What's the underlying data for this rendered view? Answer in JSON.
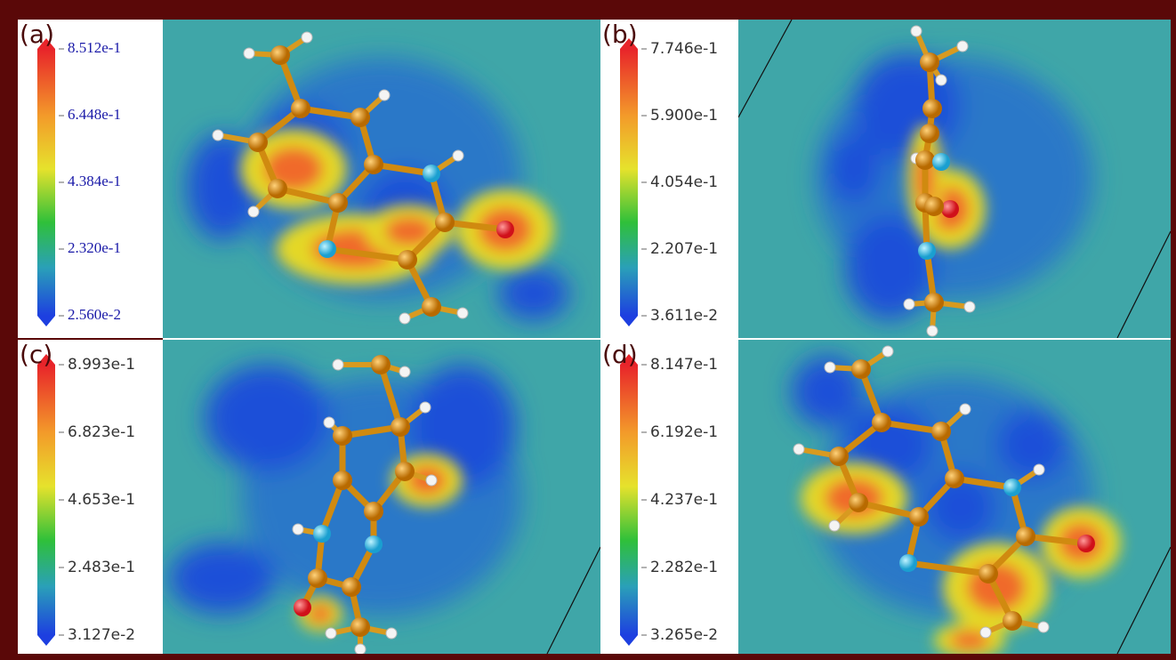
{
  "panels": [
    {
      "label": "(a)",
      "ticks": [
        "8.512e-1",
        "6.448e-1",
        "4.384e-1",
        "2.320e-1",
        "2.560e-2"
      ]
    },
    {
      "label": "(b)",
      "ticks": [
        "7.746e-1",
        "5.900e-1",
        "4.054e-1",
        "2.207e-1",
        "3.611e-2"
      ]
    },
    {
      "label": "(c)",
      "ticks": [
        "8.993e-1",
        "6.823e-1",
        "4.653e-1",
        "2.483e-1",
        "3.127e-2"
      ]
    },
    {
      "label": "(d)",
      "ticks": [
        "8.147e-1",
        "6.192e-1",
        "4.237e-1",
        "2.282e-1",
        "3.265e-2"
      ]
    }
  ]
}
